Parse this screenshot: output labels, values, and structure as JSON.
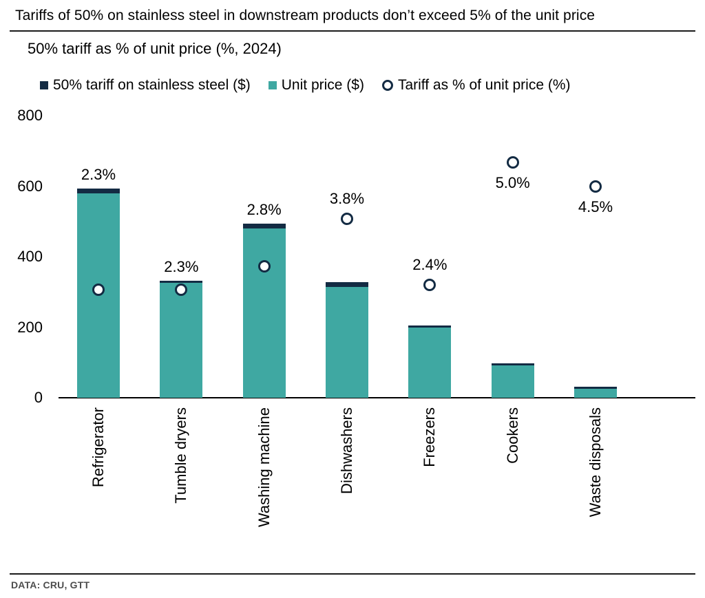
{
  "title": "Tariffs of 50% on stainless steel in downstream products don’t exceed 5% of the unit price",
  "subtitle": "50% tariff as % of unit price (%, 2024)",
  "legend": [
    {
      "label": "50% tariff on stainless steel ($)",
      "marker": "square",
      "color": "#132B43"
    },
    {
      "label": "Unit price ($)",
      "marker": "square",
      "color": "#3FA8A2"
    },
    {
      "label": "Tariff as % of unit price (%)",
      "marker": "circle",
      "color": "#132B43"
    }
  ],
  "source": "DATA: CRU, GTT",
  "chart_data": {
    "type": "bar",
    "title": "Tariffs of 50% on stainless steel in downstream products don’t exceed 5% of the unit price",
    "subtitle": "50% tariff as % of unit price (%, 2024)",
    "categories": [
      "Refrigerator",
      "Tumble dryers",
      "Washing machine",
      "Dishwashers",
      "Freezers",
      "Cookers",
      "Waste disposals"
    ],
    "series": [
      {
        "name": "Unit price ($)",
        "type": "bar",
        "color": "#3FA8A2",
        "values": [
          580,
          325,
          480,
          315,
          200,
          92,
          25
        ]
      },
      {
        "name": "50% tariff on stainless steel ($)",
        "type": "bar-stacked-cap",
        "color": "#132B43",
        "values": [
          13.3,
          7.5,
          13.4,
          12.0,
          4.8,
          4.6,
          1.1
        ]
      },
      {
        "name": "Tariff as % of unit price (%)",
        "type": "scatter",
        "axis": "secondary",
        "color": "#132B43",
        "values": [
          2.3,
          2.3,
          2.8,
          3.8,
          2.4,
          5.0,
          4.5
        ]
      }
    ],
    "point_labels": [
      "2.3%",
      "2.3%",
      "2.8%",
      "3.8%",
      "2.4%",
      "5.0%",
      "4.5%"
    ],
    "label_anchor": [
      "bar",
      "bar",
      "bar",
      "circle-above",
      "circle-above",
      "circle-below",
      "circle-below"
    ],
    "y_axis": {
      "ticks": [
        0,
        200,
        400,
        600,
        800
      ],
      "min": 0,
      "max": 800
    },
    "secondary_y_axis": {
      "min": 0,
      "max": 6,
      "visible": false
    },
    "grid": false,
    "legend_position": "top"
  }
}
